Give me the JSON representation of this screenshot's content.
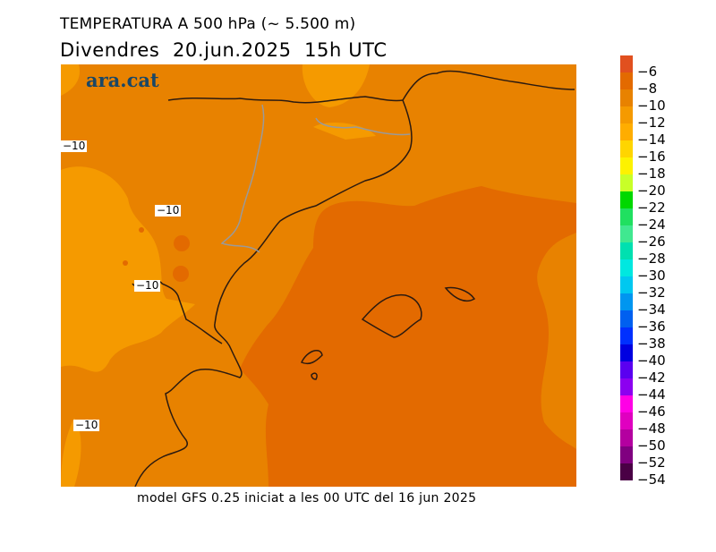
{
  "title": "TEMPERATURA A 500 hPa (~ 5.500 m)",
  "subtitle": "Divendres  20.jun.2025  15h UTC",
  "footer": "model GFS 0.25 iniciat a les 00 UTC del 16 jun 2025",
  "logo": "ara.cat",
  "contour_labels": [
    "−10",
    "−10",
    "−10",
    "−10"
  ],
  "colors": {
    "field_main": "#e88200",
    "field_warm": "#e36a00",
    "field_cool": "#f59a00",
    "coast": "#2b1a10",
    "border": "#9a9a9a"
  },
  "colorbar": {
    "labels": [
      "−6",
      "−8",
      "−10",
      "−12",
      "−14",
      "−16",
      "−18",
      "−20",
      "−22",
      "−24",
      "−26",
      "−28",
      "−30",
      "−32",
      "−34",
      "−36",
      "−38",
      "−40",
      "−42",
      "−44",
      "−46",
      "−48",
      "−50",
      "−52",
      "−54"
    ],
    "colors": [
      "#e1501f",
      "#e36a00",
      "#e88200",
      "#f59a00",
      "#ffad00",
      "#ffd500",
      "#fdf200",
      "#c8ff28",
      "#00d800",
      "#20e060",
      "#40e890",
      "#00e0b0",
      "#00e8e0",
      "#00c8f0",
      "#0096f0",
      "#0060f0",
      "#0030ff",
      "#0000e0",
      "#5a00f0",
      "#8c00f0",
      "#ff00e6",
      "#e000c0",
      "#b400a0",
      "#800080",
      "#4a0045"
    ]
  }
}
